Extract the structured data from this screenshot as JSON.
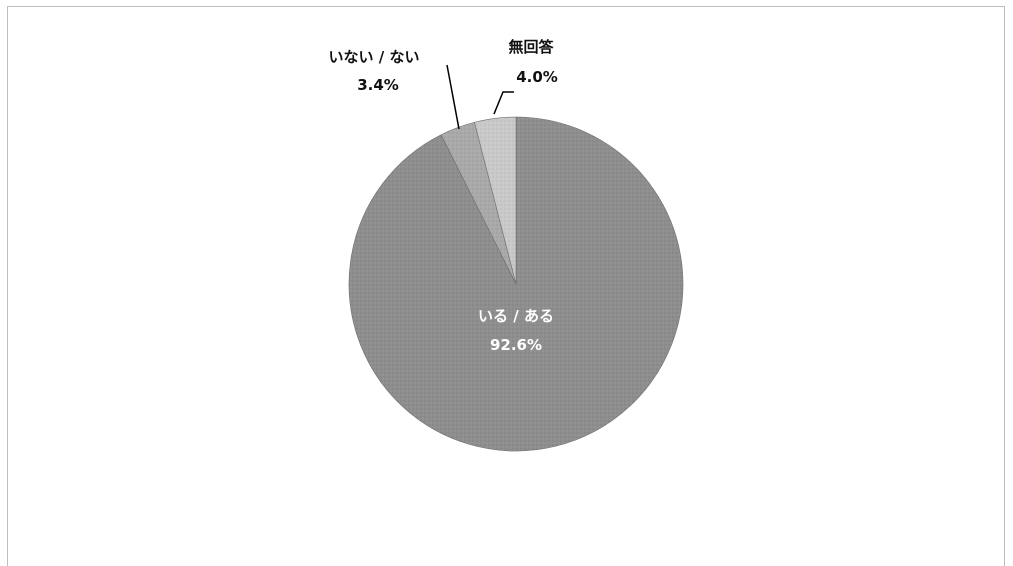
{
  "chart_data": {
    "type": "pie",
    "slices": [
      {
        "label": "いる / ある",
        "pct_label": "92.6%",
        "value": 92.6,
        "color": "#8e8e8e"
      },
      {
        "label": "いない / ない",
        "pct_label": "3.4%",
        "value": 3.4,
        "color": "#a9a9a9"
      },
      {
        "label": "無回答",
        "pct_label": "4.0%",
        "value": 4.0,
        "color": "#c9c9c9"
      }
    ],
    "start": "12 o'clock",
    "direction": "clockwise",
    "legend": "none"
  }
}
